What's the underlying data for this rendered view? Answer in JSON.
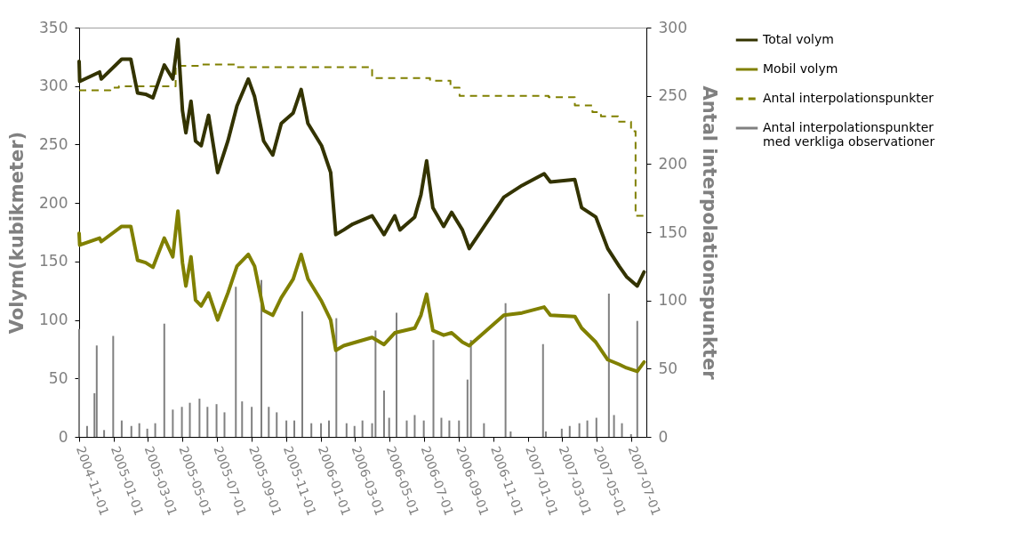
{
  "chart_data": {
    "type": "line",
    "ylabel": "Volym(kubikmeter)",
    "y2label": "Antal interpolationspunkter",
    "xlim": [
      "2004-11-01",
      "2007-07-28"
    ],
    "xticks": [
      "2004-11-01",
      "2005-01-01",
      "2005-03-01",
      "2005-05-01",
      "2005-07-01",
      "2005-09-01",
      "2005-11-01",
      "2006-01-01",
      "2006-03-01",
      "2006-05-01",
      "2006-07-01",
      "2006-09-01",
      "2006-11-01",
      "2007-01-01",
      "2007-03-01",
      "2007-05-01",
      "2007-07-01"
    ],
    "ylim": [
      0,
      350
    ],
    "yticks": [
      0,
      50,
      100,
      150,
      200,
      250,
      300,
      350
    ],
    "y2lim": [
      0,
      300
    ],
    "y2ticks": [
      0,
      50,
      100,
      150,
      200,
      250,
      300
    ],
    "grid": false,
    "legend": "right",
    "series": [
      {
        "name": "Total volym",
        "color": "#333300",
        "line_style": "solid",
        "x": [
          "2004-11-01",
          "2004-11-02",
          "2004-12-07",
          "2004-12-10",
          "2005-01-15",
          "2005-01-31",
          "2005-02-12",
          "2005-02-26",
          "2005-03-11",
          "2005-03-31",
          "2005-04-15",
          "2005-04-24",
          "2005-05-02",
          "2005-05-08",
          "2005-05-17",
          "2005-05-25",
          "2005-06-04",
          "2005-06-17",
          "2005-07-03",
          "2005-07-21",
          "2005-08-06",
          "2005-08-26",
          "2005-09-06",
          "2005-09-22",
          "2005-10-08",
          "2005-10-23",
          "2005-11-13",
          "2005-11-27",
          "2005-12-09",
          "2006-01-02",
          "2006-01-18",
          "2006-01-27",
          "2006-02-10",
          "2006-02-26",
          "2006-04-01",
          "2006-04-22",
          "2006-05-11",
          "2006-05-20",
          "2006-06-15",
          "2006-06-26",
          "2006-07-06",
          "2006-07-17",
          "2006-08-05",
          "2006-08-19",
          "2006-09-07",
          "2006-09-19",
          "2006-11-19",
          "2006-12-21",
          "2007-01-29",
          "2007-02-09",
          "2007-03-24",
          "2007-04-05",
          "2007-04-30",
          "2007-05-21",
          "2007-06-10",
          "2007-06-23",
          "2007-07-12",
          "2007-07-24"
        ],
        "values": [
          321,
          304,
          312,
          306,
          323,
          323,
          294,
          293,
          290,
          318,
          306,
          340,
          279,
          260,
          287,
          253,
          249,
          275,
          226,
          253,
          283,
          306,
          291,
          253,
          241,
          268,
          277,
          297,
          268,
          249,
          226,
          173,
          177,
          182,
          189,
          173,
          189,
          177,
          188,
          207,
          236,
          196,
          180,
          192,
          177,
          161,
          205,
          215,
          225,
          218,
          220,
          196,
          188,
          161,
          146,
          137,
          129,
          141
        ]
      },
      {
        "name": "Mobil volym",
        "color": "#808000",
        "line_style": "solid",
        "x": [
          "2004-11-01",
          "2004-11-02",
          "2004-12-07",
          "2004-12-10",
          "2005-01-15",
          "2005-01-31",
          "2005-02-12",
          "2005-02-26",
          "2005-03-11",
          "2005-03-31",
          "2005-04-15",
          "2005-04-24",
          "2005-05-02",
          "2005-05-08",
          "2005-05-17",
          "2005-05-25",
          "2005-06-04",
          "2005-06-17",
          "2005-07-03",
          "2005-07-21",
          "2005-08-06",
          "2005-08-26",
          "2005-09-06",
          "2005-09-22",
          "2005-10-08",
          "2005-10-23",
          "2005-11-13",
          "2005-11-27",
          "2005-12-09",
          "2006-01-02",
          "2006-01-18",
          "2006-01-27",
          "2006-02-10",
          "2006-04-01",
          "2006-04-22",
          "2006-05-11",
          "2006-06-15",
          "2006-06-26",
          "2006-07-06",
          "2006-07-17",
          "2006-08-05",
          "2006-08-19",
          "2006-09-07",
          "2006-09-19",
          "2006-11-19",
          "2006-12-21",
          "2007-01-29",
          "2007-02-09",
          "2007-03-24",
          "2007-04-05",
          "2007-04-30",
          "2007-05-21",
          "2007-06-10",
          "2007-06-23",
          "2007-07-12",
          "2007-07-24"
        ],
        "values": [
          174,
          164,
          170,
          167,
          180,
          180,
          151,
          149,
          145,
          170,
          154,
          193,
          149,
          129,
          154,
          117,
          112,
          123,
          100,
          123,
          146,
          156,
          146,
          108,
          104,
          119,
          135,
          156,
          135,
          116,
          100,
          74,
          78,
          85,
          79,
          89,
          93,
          104,
          122,
          91,
          87,
          89,
          81,
          78,
          104,
          106,
          111,
          104,
          103,
          93,
          81,
          66,
          62,
          59,
          56,
          64
        ]
      },
      {
        "name": "Antal interpolationspunkter",
        "type": "step",
        "axis": "y2",
        "color": "#808000",
        "line_style": "dashed",
        "x": [
          "2004-11-01",
          "2004-12-26",
          "2005-01-10",
          "2005-04-20",
          "2005-06-01",
          "2005-08-06",
          "2006-04-01",
          "2006-07-12",
          "2006-08-17",
          "2006-09-02",
          "2007-02-06",
          "2007-03-24",
          "2007-04-24",
          "2007-05-09",
          "2007-06-08",
          "2007-07-01",
          "2007-07-09",
          "2007-07-28"
        ],
        "values": [
          254,
          256,
          257,
          272,
          273,
          271,
          263,
          261,
          256,
          250,
          249,
          243,
          238,
          235,
          231,
          224,
          162,
          162
        ]
      },
      {
        "name": "Antal interpolationspunkter med verkliga observationer",
        "type": "bar",
        "axis": "y2",
        "color": "#808080",
        "x": [
          "2004-11-01",
          "2004-11-15",
          "2004-11-28",
          "2004-12-02",
          "2004-12-15",
          "2004-12-31",
          "2005-01-15",
          "2005-02-01",
          "2005-02-15",
          "2005-03-01",
          "2005-03-15",
          "2005-03-31",
          "2005-04-15",
          "2005-05-01",
          "2005-05-15",
          "2005-06-01",
          "2005-06-15",
          "2005-07-01",
          "2005-07-15",
          "2005-08-04",
          "2005-08-15",
          "2005-09-01",
          "2005-09-18",
          "2005-10-01",
          "2005-10-15",
          "2005-11-01",
          "2005-11-15",
          "2005-11-29",
          "2005-12-15",
          "2006-01-01",
          "2006-01-15",
          "2006-01-28",
          "2006-02-15",
          "2006-03-01",
          "2006-03-15",
          "2006-04-01",
          "2006-04-07",
          "2006-04-22",
          "2006-05-01",
          "2006-05-14",
          "2006-06-01",
          "2006-06-15",
          "2006-07-01",
          "2006-07-18",
          "2006-08-01",
          "2006-08-15",
          "2006-09-01",
          "2006-09-16",
          "2006-09-22",
          "2006-10-15",
          "2006-11-22",
          "2006-12-01",
          "2007-01-27",
          "2007-02-01",
          "2007-03-01",
          "2007-03-15",
          "2007-04-01",
          "2007-04-15",
          "2007-05-01",
          "2007-05-23",
          "2007-06-01",
          "2007-06-15",
          "2007-07-01",
          "2007-07-12"
        ],
        "values": [
          79,
          8,
          32,
          67,
          5,
          74,
          12,
          8,
          10,
          6,
          10,
          83,
          20,
          22,
          25,
          28,
          22,
          24,
          18,
          110,
          26,
          22,
          115,
          22,
          18,
          12,
          12,
          92,
          10,
          10,
          12,
          87,
          10,
          8,
          12,
          10,
          78,
          34,
          14,
          91,
          12,
          16,
          12,
          71,
          14,
          12,
          12,
          42,
          71,
          10,
          98,
          4,
          68,
          4,
          6,
          8,
          10,
          12,
          14,
          105,
          16,
          10,
          2,
          85
        ]
      }
    ]
  }
}
